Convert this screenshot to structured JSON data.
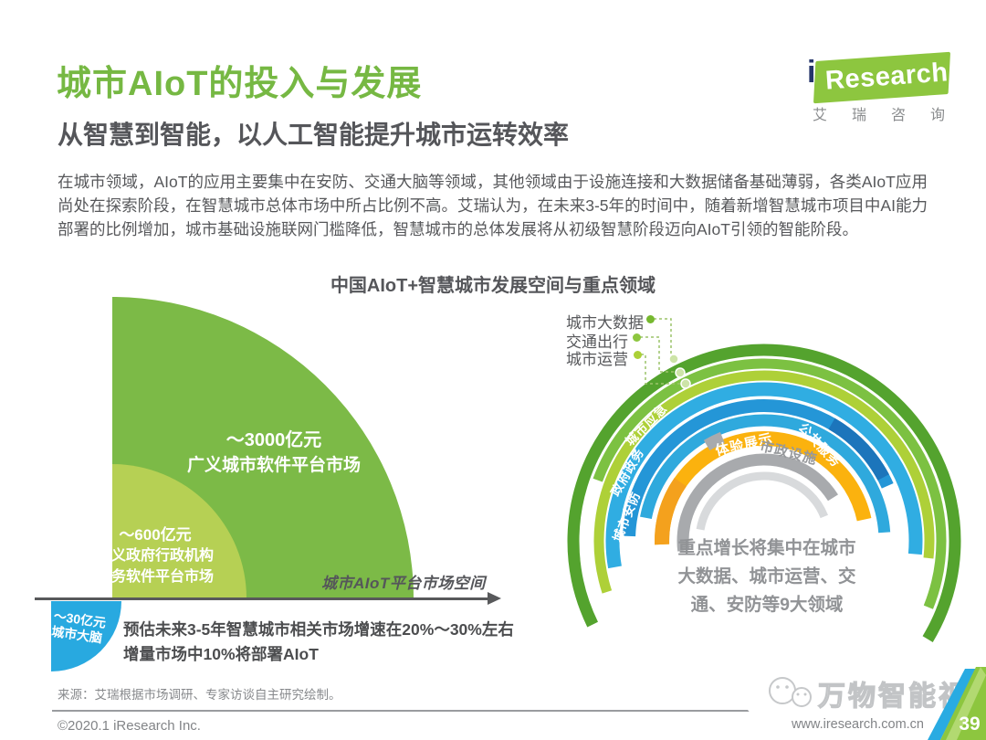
{
  "colors": {
    "title_green": "#76b843",
    "heading_dark": "#55565a",
    "body_gray": "#57585b",
    "center_note_gray": "#919396",
    "footer_gray": "#828487",
    "axis_gray": "#58595b",
    "leader_green": "#9cc46a",
    "corner_green": "#8dc63f",
    "corner_blue": "#29abe2"
  },
  "header": {
    "title": "城市AIoT的投入与发展",
    "subtitle": "从智慧到智能，以人工智能提升城市运转效率",
    "logo": {
      "i": "i",
      "research": "Research",
      "chinese": "艾瑞咨询"
    }
  },
  "body_text": "在城市领域，AIoT的应用主要集中在安防、交通大脑等领域，其他领域由于设施连接和大数据储备基础薄弱，各类AIoT应用尚处在探索阶段，在智慧城市总体市场中所占比例不高。艾瑞认为，在未来3-5年的时间中，随着新增智慧城市项目中AI能力部署的比例增加，城市基础设施联网门槛降低，智慧城市的总体发展将从初级智慧阶段迈向AIoT引领的智能阶段。",
  "chart": {
    "title": "中国AIoT+智慧城市发展空间与重点领域",
    "left": {
      "axis_label": "城市AIoT平台市场空间",
      "segments": [
        {
          "value": "～3000亿元",
          "label": "广义城市软件平台市场",
          "color": "#7cba47"
        },
        {
          "value": "～600亿元",
          "label1": "狭义政府行政机构",
          "label2": "政务软件平台市场",
          "color": "#b6d054"
        },
        {
          "value": "～30亿元",
          "label": "城市大脑",
          "color": "#28a9e0"
        }
      ],
      "note1": "预估未来3-5年智慧城市相关市场增速在20%～30%左右",
      "note2": "增量市场中10%将部署AIoT"
    },
    "right": {
      "legend": [
        {
          "label": "城市大数据",
          "dot_color": "#76b82f"
        },
        {
          "label": "交通出行",
          "dot_color": "#8dc63f"
        },
        {
          "label": "城市运营",
          "dot_color": "#abd037"
        }
      ],
      "rings": [
        {
          "name": "城市大数据",
          "color": "#54a32e",
          "r": 209,
          "w": 13,
          "a1": -116,
          "a2": 121
        },
        {
          "name": "交通出行",
          "color": "#7cc142",
          "r": 194,
          "w": 11,
          "a1": -70,
          "a2": 112
        },
        {
          "name": "城市运营",
          "color": "#aed038",
          "r": 181,
          "w": 11,
          "a1": -108,
          "a2": 96
        },
        {
          "name": "城市应急",
          "color": "#30ade2",
          "r": 166,
          "w": 15,
          "a1": -100,
          "a2": 95
        },
        {
          "name": "政府政务",
          "color": "#2496d7",
          "r": 148,
          "w": 14,
          "a1": -88,
          "a2": 66
        },
        {
          "name": "城市安防",
          "color": "#2fa9dd",
          "r": 132,
          "w": 13,
          "a1": -79,
          "a2": 86
        },
        {
          "name": "公共服务",
          "color": "#fbb20e",
          "r": 112,
          "w": 16,
          "a1": -92,
          "a2": 78
        },
        {
          "name": "体验展示",
          "color": "#a8aaad",
          "r": 89,
          "w": 13,
          "a1": -97,
          "a2": 58
        },
        {
          "name": "市政设施",
          "color": "#d8dadc",
          "r": 71,
          "w": 9,
          "a1": -80,
          "a2": 68
        }
      ],
      "extra_segments": [
        {
          "name": "dark-blue-step",
          "color": "#1c75bb",
          "r": 148,
          "w": 14,
          "a1": 30,
          "a2": 62
        },
        {
          "name": "orange-tint",
          "color": "#f4a11d",
          "r": 112,
          "w": 16,
          "a1": -92,
          "a2": -55
        },
        {
          "name": "gray-step",
          "color": "#a8aaad",
          "r": 122,
          "w": 13,
          "a1": -31,
          "a2": -22
        }
      ],
      "center_note1": "重点增长将集中在城市",
      "center_note2": "大数据、城市运营、交",
      "center_note3": "通、安防等9大领域"
    }
  },
  "chart_data": [
    {
      "type": "pie",
      "title": "中国AIoT+智慧城市发展空间（城市AIoT平台市场空间，单位：亿元）",
      "categories": [
        "广义城市软件平台市场",
        "狭义政府行政机构政务软件平台市场",
        "城市大脑"
      ],
      "values": [
        3000,
        600,
        30
      ],
      "value_labels": [
        "～3000亿元",
        "～600亿元",
        "～30亿元"
      ],
      "xlabel": "城市AIoT平台市场空间",
      "annotations": [
        "预估未来3-5年智慧城市相关市场增速在20%～30%左右",
        "增量市场中10%将部署AIoT"
      ]
    },
    {
      "type": "other",
      "title": "AIoT+智慧城市9大重点领域（同心弧图）",
      "categories": [
        "城市大数据",
        "交通出行",
        "城市运营",
        "城市应急",
        "政府政务",
        "城市安防",
        "公共服务",
        "体验展示",
        "市政设施"
      ],
      "annotation": "重点增长将集中在城市大数据、城市运营、交通、安防等9大领域"
    }
  ],
  "source": "来源：艾瑞根据市场调研、专家访谈自主研究绘制。",
  "watermark": "万物智能视界",
  "footer": {
    "copyright": "©2020.1 iResearch Inc.",
    "website": "www.iresearch.com.cn",
    "page": "39"
  }
}
